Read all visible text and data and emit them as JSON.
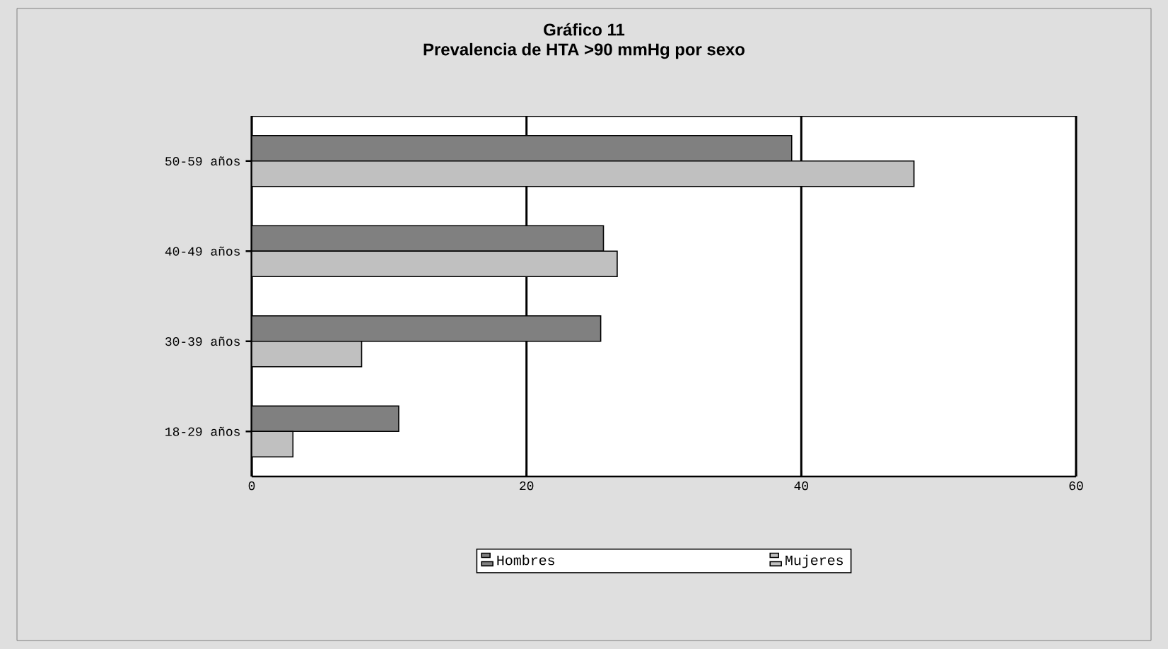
{
  "chart_data": {
    "type": "bar",
    "orientation": "horizontal",
    "title": "Gráfico 11",
    "subtitle": "Prevalencia de HTA >90 mmHg por sexo",
    "categories": [
      "50-59 años",
      "40-49 años",
      "30-39 años",
      "18-29 años"
    ],
    "series": [
      {
        "name": "Hombres",
        "color": "#808080",
        "values": [
          39.3,
          25.6,
          25.4,
          10.7
        ]
      },
      {
        "name": "Mujeres",
        "color": "#c0c0c0",
        "values": [
          48.2,
          26.6,
          8.0,
          3.0
        ]
      }
    ],
    "xlim": [
      0,
      60
    ],
    "xticks": [
      0,
      20,
      40,
      60
    ],
    "grid": "x",
    "legend": "bottom"
  }
}
